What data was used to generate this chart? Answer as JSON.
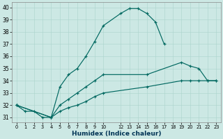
{
  "xlabel": "Humidex (Indice chaleur)",
  "bg_color": "#cce8e4",
  "grid_color": "#aad4cc",
  "line_color": "#006860",
  "xlim_min": -0.5,
  "xlim_max": 23.5,
  "ylim_min": 30.6,
  "ylim_max": 40.4,
  "xticks": [
    0,
    1,
    2,
    3,
    4,
    5,
    6,
    7,
    8,
    9,
    10,
    12,
    13,
    14,
    15,
    16,
    17,
    18,
    19,
    20,
    21,
    22,
    23
  ],
  "yticks": [
    31,
    32,
    33,
    34,
    35,
    36,
    37,
    38,
    39,
    40
  ],
  "curve1_x": [
    0,
    1,
    2,
    3,
    4,
    5,
    6,
    7,
    8,
    9,
    10,
    12,
    13,
    14,
    15,
    16,
    17
  ],
  "curve1_y": [
    32,
    31.5,
    31.5,
    31,
    31,
    33.5,
    34.5,
    35.0,
    36.0,
    37.2,
    38.5,
    39.5,
    39.9,
    39.9,
    39.5,
    38.8,
    37.0
  ],
  "curve2_x": [
    0,
    4,
    5,
    6,
    7,
    8,
    9,
    10,
    15,
    19,
    20,
    21,
    22,
    23
  ],
  "curve2_y": [
    32,
    31,
    32,
    32.5,
    33,
    33.5,
    34,
    34.5,
    34.5,
    35.5,
    35.2,
    35.0,
    34.0,
    34.0
  ],
  "curve3_x": [
    0,
    4,
    5,
    6,
    7,
    8,
    9,
    10,
    15,
    19,
    20,
    21,
    22,
    23
  ],
  "curve3_y": [
    32,
    31,
    31.5,
    31.8,
    32,
    32.3,
    32.7,
    33.0,
    33.5,
    34.0,
    34.0,
    34.0,
    34.0,
    34.0
  ]
}
